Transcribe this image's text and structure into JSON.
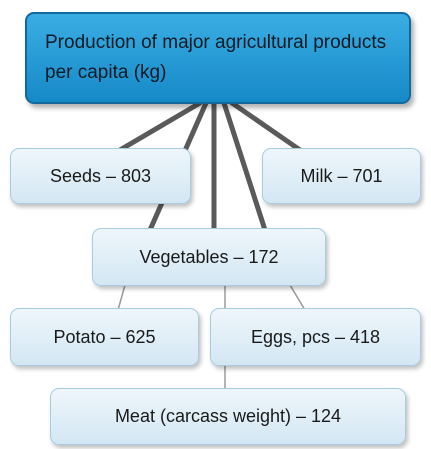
{
  "nodes": [
    {
      "label": "Production of major agricultural products per capita (kg)"
    },
    {
      "label": "Seeds – 803"
    },
    {
      "label": "Milk – 701"
    },
    {
      "label": "Vegetables – 172"
    },
    {
      "label": "Potato – 625"
    },
    {
      "label": "Eggs, pcs – 418"
    },
    {
      "label": "Meat (carcass weight) – 124"
    }
  ]
}
